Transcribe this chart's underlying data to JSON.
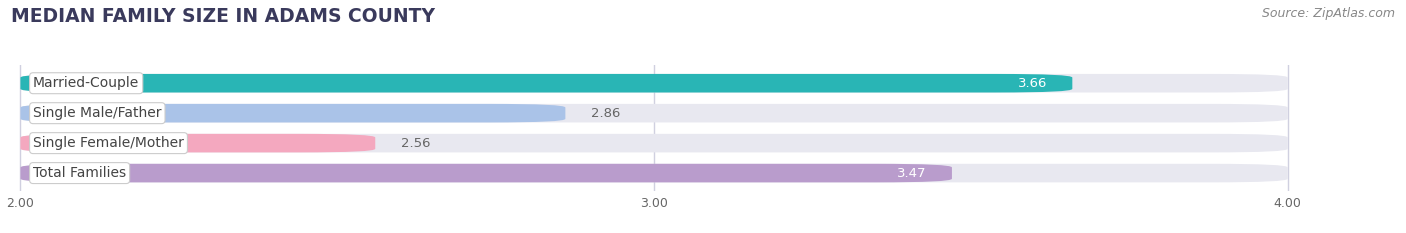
{
  "title": "MEDIAN FAMILY SIZE IN ADAMS COUNTY",
  "source": "Source: ZipAtlas.com",
  "categories": [
    "Married-Couple",
    "Single Male/Father",
    "Single Female/Mother",
    "Total Families"
  ],
  "values": [
    3.66,
    2.86,
    2.56,
    3.47
  ],
  "bar_colors": [
    "#29b5b5",
    "#aac3e8",
    "#f4a8bf",
    "#b99ccc"
  ],
  "value_inside": [
    true,
    false,
    false,
    true
  ],
  "value_colors_inside": [
    "#ffffff",
    "#555555",
    "#555555",
    "#ffffff"
  ],
  "xlim_min": 2.0,
  "xlim_max": 4.0,
  "xticks": [
    2.0,
    3.0,
    4.0
  ],
  "xtick_labels": [
    "2.00",
    "3.00",
    "4.00"
  ],
  "bar_height": 0.62,
  "background_color": "#ffffff",
  "bar_bg_color": "#e8e8f0",
  "title_fontsize": 13.5,
  "label_fontsize": 10,
  "value_fontsize": 9.5,
  "source_fontsize": 9,
  "grid_color": "#d0d0e0"
}
